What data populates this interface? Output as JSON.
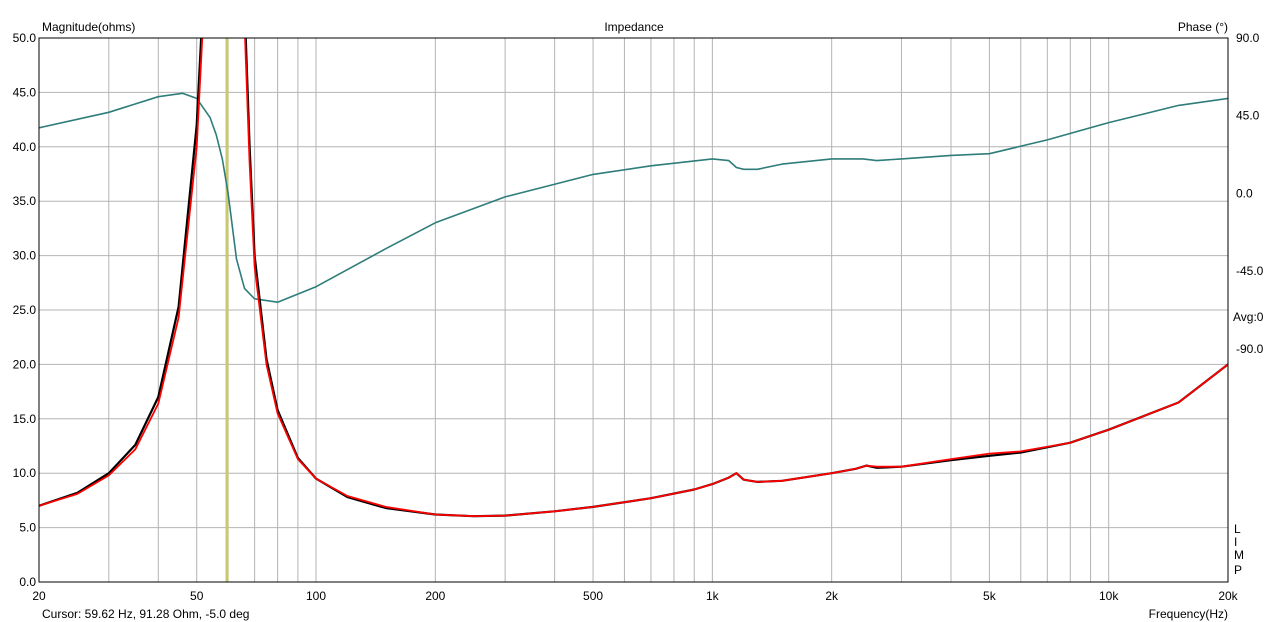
{
  "header": {
    "left_title": "Magnitude(ohms)",
    "center_title": "Impedance",
    "right_title": "Phase (°)"
  },
  "footer": {
    "cursor": "Cursor: 59.62 Hz, 91.28 Ohm, -5.0 deg",
    "x_unit": "Frequency(Hz)"
  },
  "right_notes": {
    "avg": "Avg:0",
    "lip": [
      "L",
      "I",
      "M",
      "P"
    ]
  },
  "colors": {
    "background": "#ffffff",
    "grid": "#b4b4b4",
    "impedance_measured": "#000000",
    "impedance_model": "#ff0000",
    "phase": "#2e7d7a",
    "cursor": "#c8c86e"
  },
  "chart_data": {
    "type": "line",
    "title": "Impedance",
    "xlabel": "Frequency(Hz)",
    "ylabel": "Magnitude(ohms)",
    "y2label": "Phase (°)",
    "x_scale": "log",
    "xlim": [
      20,
      20000
    ],
    "ylim": [
      0,
      50
    ],
    "y2lim": [
      -225,
      90
    ],
    "grid": true,
    "x_ticks": [
      {
        "value": 20,
        "label": "20"
      },
      {
        "value": 50,
        "label": "50"
      },
      {
        "value": 100,
        "label": "100"
      },
      {
        "value": 200,
        "label": "200"
      },
      {
        "value": 500,
        "label": "500"
      },
      {
        "value": 1000,
        "label": "1k"
      },
      {
        "value": 2000,
        "label": "2k"
      },
      {
        "value": 5000,
        "label": "5k"
      },
      {
        "value": 10000,
        "label": "10k"
      },
      {
        "value": 20000,
        "label": "20k"
      }
    ],
    "x_minor_grid": [
      30,
      40,
      60,
      70,
      80,
      90,
      300,
      400,
      600,
      700,
      800,
      900,
      3000,
      4000,
      6000,
      7000,
      8000,
      9000
    ],
    "y_ticks": [
      "0.0",
      "5.0",
      "10.0",
      "15.0",
      "20.0",
      "25.0",
      "30.0",
      "35.0",
      "40.0",
      "45.0",
      "50.0"
    ],
    "y_tick_values": [
      0,
      5,
      10,
      15,
      20,
      25,
      30,
      35,
      40,
      45,
      50
    ],
    "y2_ticks": [
      "-90.0",
      "-45.0",
      "0.0",
      "45.0",
      "90.0"
    ],
    "y2_tick_values": [
      -90,
      -45,
      0,
      45,
      90
    ],
    "cursor_x": 59.62,
    "series": [
      {
        "key": "phase",
        "axis": "y2",
        "x": [
          20,
          30,
          40,
          46,
          50,
          54,
          56,
          58,
          60,
          63,
          66,
          70,
          80,
          100,
          150,
          200,
          300,
          500,
          700,
          1000,
          1100,
          1150,
          1200,
          1300,
          1500,
          2000,
          2400,
          2600,
          3000,
          4000,
          5000,
          7000,
          10000,
          15000,
          20000
        ],
        "y": [
          38,
          47,
          56,
          58,
          55,
          44,
          34,
          20,
          0,
          -38,
          -55,
          -61,
          -63,
          -54,
          -32,
          -17,
          -2,
          11,
          16,
          20,
          19,
          15,
          14,
          14,
          17,
          20,
          20,
          19,
          20,
          22,
          23,
          31,
          41,
          51,
          55
        ]
      },
      {
        "key": "measured",
        "x": [
          20,
          25,
          30,
          35,
          40,
          45,
          50,
          53,
          55,
          57,
          60,
          63,
          65,
          68,
          70,
          75,
          80,
          90,
          100,
          120,
          150,
          200,
          250,
          300,
          400,
          500,
          700,
          900,
          1000,
          1100,
          1150,
          1200,
          1300,
          1500,
          2000,
          2300,
          2450,
          2600,
          3000,
          4000,
          5000,
          6000,
          8000,
          10000,
          15000,
          20000
        ],
        "y": [
          7.0,
          8.2,
          10.0,
          12.6,
          17.0,
          25.3,
          42.0,
          60.0,
          75.0,
          88.0,
          92.0,
          80.0,
          60.0,
          40.0,
          30.0,
          20.5,
          15.8,
          11.4,
          9.5,
          7.8,
          6.8,
          6.2,
          6.05,
          6.1,
          6.5,
          6.9,
          7.7,
          8.5,
          9.0,
          9.6,
          10.0,
          9.4,
          9.2,
          9.3,
          10.0,
          10.4,
          10.7,
          10.5,
          10.6,
          11.2,
          11.6,
          11.9,
          12.8,
          14.0,
          16.5,
          20.0
        ]
      },
      {
        "key": "model",
        "x": [
          20,
          25,
          30,
          35,
          40,
          45,
          50,
          53,
          55,
          57,
          60,
          63,
          65,
          68,
          70,
          75,
          80,
          90,
          100,
          120,
          150,
          200,
          250,
          300,
          400,
          500,
          700,
          900,
          1000,
          1100,
          1150,
          1200,
          1300,
          1500,
          2000,
          2300,
          2450,
          2600,
          3000,
          4000,
          5000,
          6000,
          8000,
          10000,
          15000,
          20000
        ],
        "y": [
          7.0,
          8.1,
          9.8,
          12.2,
          16.4,
          24.3,
          40.0,
          58.0,
          72.0,
          85.0,
          90.0,
          78.0,
          58.0,
          38.5,
          29.0,
          20.0,
          15.5,
          11.3,
          9.5,
          7.9,
          6.9,
          6.2,
          6.05,
          6.1,
          6.5,
          6.9,
          7.7,
          8.5,
          9.0,
          9.6,
          10.0,
          9.4,
          9.2,
          9.3,
          10.0,
          10.4,
          10.7,
          10.6,
          10.6,
          11.3,
          11.8,
          12.0,
          12.8,
          14.0,
          16.5,
          20.0
        ]
      }
    ]
  }
}
